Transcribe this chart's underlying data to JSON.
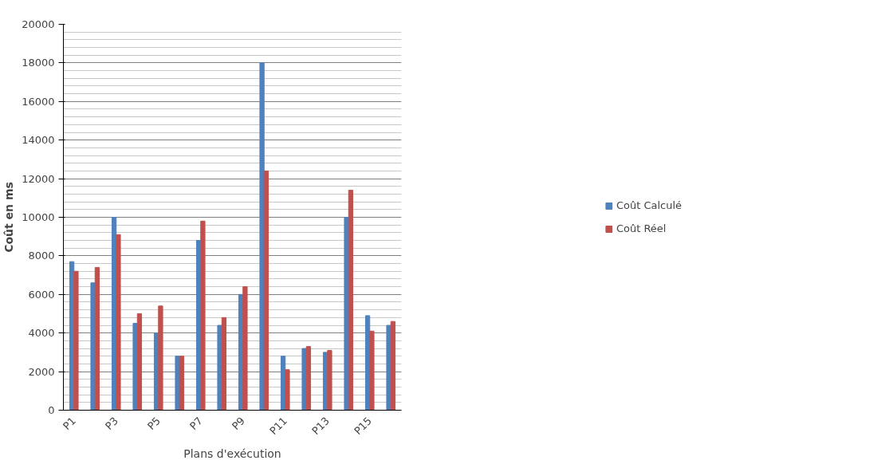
{
  "chart_data": {
    "type": "bar",
    "xlabel": "Plans d'exécution",
    "ylabel": "Coût en ms",
    "categories": [
      "P1",
      null,
      "P3",
      null,
      "P5",
      null,
      "P7",
      null,
      "P9",
      null,
      "P11",
      null,
      "P13",
      null,
      "P15",
      null
    ],
    "series": [
      {
        "name": "Coût Calculé",
        "color": "#4f81bd",
        "values": [
          7700,
          6600,
          10000,
          4500,
          4000,
          2800,
          8800,
          4400,
          6000,
          18000,
          2800,
          3200,
          3000,
          10000,
          4900,
          4400
        ]
      },
      {
        "name": "Coût Réel",
        "color": "#c0504d",
        "values": [
          7200,
          7400,
          9100,
          5000,
          5400,
          2800,
          9800,
          4800,
          6400,
          12400,
          2100,
          3300,
          3100,
          11400,
          4100,
          4600
        ]
      }
    ],
    "ylim": [
      0,
      20000
    ],
    "yticks": [
      0,
      2000,
      4000,
      6000,
      8000,
      10000,
      12000,
      14000,
      16000,
      18000,
      20000
    ],
    "grid": "y",
    "legend": "right"
  }
}
